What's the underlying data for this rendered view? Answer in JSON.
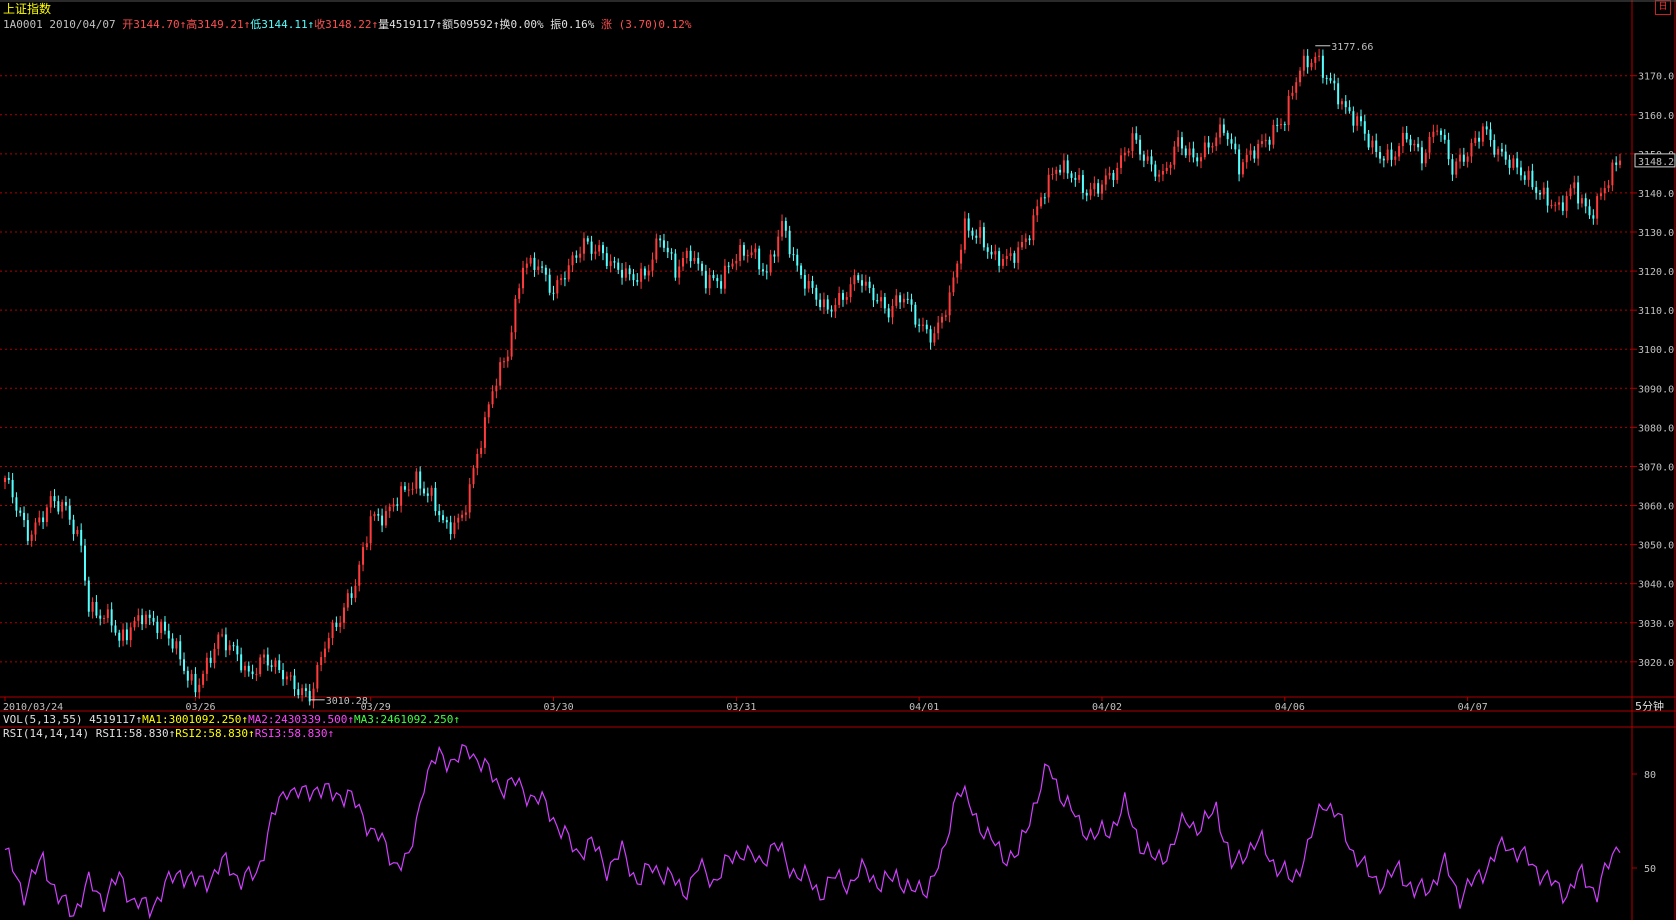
{
  "header": {
    "title": "上证指数",
    "code": "1A0001",
    "date": "2010/04/07",
    "open": "开3144.70↑",
    "high": "高3149.21↑",
    "low": "低3144.11↑",
    "close": "收3148.22↑",
    "volume": "量4519117↑",
    "amount": "额509592↑",
    "turnover": "换0.00%",
    "amplitude": "振0.16%",
    "change_label": "涨",
    "change": "(3.70)0.12%"
  },
  "icon": {
    "name": "corner-icon",
    "glyph": "日"
  },
  "period": "5分钟",
  "vol_bar": {
    "label": "VOL(5,13,55)",
    "value": "4519117↑",
    "ma1": "MA1:3001092.250↑",
    "ma2": "MA2:2430339.500↑",
    "ma3": "MA3:2461092.250↑"
  },
  "rsi_bar": {
    "label": "RSI(14,14,14)",
    "rsi1": "RSI1:58.830↑",
    "rsi2": "RSI2:58.830↑",
    "rsi3": "RSI3:58.830↑"
  },
  "colors": {
    "up": "#ff3c3c",
    "down": "#54ffff",
    "grid": "#b00000",
    "rsi": "#d040ff"
  },
  "chart_data": [
    {
      "type": "candlestick",
      "title": "上证指数",
      "ylim": [
        3011,
        3184
      ],
      "y_ticks": [
        3020.0,
        3030.0,
        3040.0,
        3050.0,
        3060.0,
        3070.0,
        3080.0,
        3090.0,
        3100.0,
        3110.0,
        3120.0,
        3130.0,
        3140.0,
        3150.0,
        3160.0,
        3170.0
      ],
      "x_tick_labels": [
        "2010/03/24",
        "03/26",
        "03/29",
        "03/30",
        "03/31",
        "04/01",
        "04/02",
        "04/06",
        "04/07"
      ],
      "last_price_label": "3148.2",
      "annotations": [
        {
          "text": "3177.66",
          "value": 3177.66
        },
        {
          "text": "3010.28",
          "value": 3010.28
        }
      ],
      "close_keypoints": [
        [
          0,
          3066
        ],
        [
          6,
          3053
        ],
        [
          12,
          3061
        ],
        [
          16,
          3058
        ],
        [
          20,
          3050
        ],
        [
          22,
          3035
        ],
        [
          28,
          3030
        ],
        [
          30,
          3024
        ],
        [
          36,
          3033
        ],
        [
          40,
          3030
        ],
        [
          44,
          3024
        ],
        [
          48,
          3016
        ],
        [
          50,
          3014
        ],
        [
          56,
          3026
        ],
        [
          60,
          3022
        ],
        [
          64,
          3017
        ],
        [
          68,
          3022
        ],
        [
          72,
          3017
        ],
        [
          76,
          3013
        ],
        [
          80,
          3012
        ],
        [
          84,
          3025
        ],
        [
          88,
          3030
        ],
        [
          92,
          3040
        ],
        [
          96,
          3058
        ],
        [
          100,
          3057
        ],
        [
          104,
          3062
        ],
        [
          108,
          3067
        ],
        [
          112,
          3063
        ],
        [
          116,
          3053
        ],
        [
          120,
          3056
        ],
        [
          124,
          3074
        ],
        [
          128,
          3090
        ],
        [
          132,
          3098
        ],
        [
          136,
          3122
        ],
        [
          140,
          3123
        ],
        [
          144,
          3114
        ],
        [
          148,
          3120
        ],
        [
          152,
          3128
        ],
        [
          156,
          3126
        ],
        [
          160,
          3120
        ],
        [
          164,
          3118
        ],
        [
          168,
          3120
        ],
        [
          172,
          3129
        ],
        [
          176,
          3119
        ],
        [
          180,
          3125
        ],
        [
          184,
          3119
        ],
        [
          188,
          3117
        ],
        [
          192,
          3123
        ],
        [
          196,
          3126
        ],
        [
          200,
          3120
        ],
        [
          204,
          3131
        ],
        [
          208,
          3120
        ],
        [
          212,
          3116
        ],
        [
          216,
          3110
        ],
        [
          220,
          3112
        ],
        [
          224,
          3119
        ],
        [
          228,
          3115
        ],
        [
          232,
          3109
        ],
        [
          236,
          3113
        ],
        [
          240,
          3107
        ],
        [
          244,
          3104
        ],
        [
          248,
          3112
        ],
        [
          252,
          3131
        ],
        [
          256,
          3130
        ],
        [
          260,
          3123
        ],
        [
          264,
          3122
        ],
        [
          268,
          3128
        ],
        [
          272,
          3140
        ],
        [
          276,
          3146
        ],
        [
          280,
          3144
        ],
        [
          284,
          3141
        ],
        [
          288,
          3143
        ],
        [
          292,
          3145
        ],
        [
          296,
          3154
        ],
        [
          300,
          3149
        ],
        [
          304,
          3144
        ],
        [
          308,
          3152
        ],
        [
          312,
          3149
        ],
        [
          316,
          3153
        ],
        [
          320,
          3156
        ],
        [
          324,
          3146
        ],
        [
          328,
          3152
        ],
        [
          332,
          3155
        ],
        [
          336,
          3158
        ],
        [
          340,
          3172
        ],
        [
          344,
          3176
        ],
        [
          348,
          3168
        ],
        [
          352,
          3160
        ],
        [
          356,
          3158
        ],
        [
          360,
          3151
        ],
        [
          364,
          3148
        ],
        [
          368,
          3154
        ],
        [
          372,
          3150
        ],
        [
          376,
          3158
        ],
        [
          380,
          3145
        ],
        [
          384,
          3150
        ],
        [
          388,
          3158
        ],
        [
          392,
          3150
        ],
        [
          396,
          3146
        ],
        [
          400,
          3144
        ],
        [
          404,
          3140
        ],
        [
          408,
          3135
        ],
        [
          412,
          3141
        ],
        [
          416,
          3135
        ],
        [
          420,
          3142
        ],
        [
          424,
          3148
        ]
      ],
      "bars": 425
    },
    {
      "type": "line",
      "title": "RSI(14,14,14)",
      "ylim": [
        35,
        95
      ],
      "y_ticks": [
        50,
        80
      ],
      "series": [
        {
          "name": "RSI1",
          "keypoints": [
            [
              0,
              55
            ],
            [
              5,
              42
            ],
            [
              10,
              53
            ],
            [
              14,
              40
            ],
            [
              18,
              36
            ],
            [
              22,
              45
            ],
            [
              26,
              40
            ],
            [
              30,
              47
            ],
            [
              34,
              39
            ],
            [
              38,
              37
            ],
            [
              42,
              44
            ],
            [
              46,
              49
            ],
            [
              50,
              45
            ],
            [
              54,
              47
            ],
            [
              58,
              52
            ],
            [
              62,
              46
            ],
            [
              66,
              48
            ],
            [
              70,
              65
            ],
            [
              74,
              76
            ],
            [
              78,
              73
            ],
            [
              82,
              76
            ],
            [
              86,
              73
            ],
            [
              90,
              74
            ],
            [
              94,
              66
            ],
            [
              98,
              60
            ],
            [
              102,
              52
            ],
            [
              106,
              52
            ],
            [
              110,
              78
            ],
            [
              114,
              86
            ],
            [
              118,
              84
            ],
            [
              122,
              88
            ],
            [
              126,
              82
            ],
            [
              130,
              76
            ],
            [
              134,
              77
            ],
            [
              138,
              73
            ],
            [
              142,
              70
            ],
            [
              146,
              62
            ],
            [
              150,
              55
            ],
            [
              154,
              58
            ],
            [
              158,
              50
            ],
            [
              162,
              55
            ],
            [
              166,
              46
            ],
            [
              170,
              50
            ],
            [
              174,
              48
            ],
            [
              178,
              42
            ],
            [
              182,
              50
            ],
            [
              186,
              46
            ],
            [
              190,
              52
            ],
            [
              194,
              56
            ],
            [
              198,
              51
            ],
            [
              202,
              58
            ],
            [
              206,
              50
            ],
            [
              210,
              47
            ],
            [
              214,
              42
            ],
            [
              218,
              47
            ],
            [
              222,
              45
            ],
            [
              226,
              50
            ],
            [
              230,
              44
            ],
            [
              234,
              48
            ],
            [
              238,
              42
            ],
            [
              242,
              44
            ],
            [
              246,
              52
            ],
            [
              250,
              76
            ],
            [
              254,
              68
            ],
            [
              258,
              60
            ],
            [
              262,
              54
            ],
            [
              266,
              54
            ],
            [
              270,
              70
            ],
            [
              274,
              82
            ],
            [
              278,
              72
            ],
            [
              282,
              64
            ],
            [
              286,
              60
            ],
            [
              290,
              62
            ],
            [
              294,
              70
            ],
            [
              298,
              58
            ],
            [
              302,
              52
            ],
            [
              306,
              56
            ],
            [
              310,
              66
            ],
            [
              314,
              62
            ],
            [
              318,
              70
            ],
            [
              322,
              50
            ],
            [
              326,
              56
            ],
            [
              330,
              58
            ],
            [
              334,
              50
            ],
            [
              338,
              46
            ],
            [
              342,
              56
            ],
            [
              346,
              72
            ],
            [
              350,
              66
            ],
            [
              354,
              55
            ],
            [
              358,
              48
            ],
            [
              362,
              45
            ],
            [
              366,
              50
            ],
            [
              370,
              42
            ],
            [
              374,
              44
            ],
            [
              378,
              51
            ],
            [
              382,
              41
            ],
            [
              386,
              46
            ],
            [
              390,
              52
            ],
            [
              394,
              58
            ],
            [
              398,
              54
            ],
            [
              402,
              50
            ],
            [
              406,
              45
            ],
            [
              410,
              42
            ],
            [
              414,
              48
            ],
            [
              418,
              42
            ],
            [
              422,
              54
            ],
            [
              424,
              59
            ]
          ]
        }
      ]
    }
  ]
}
